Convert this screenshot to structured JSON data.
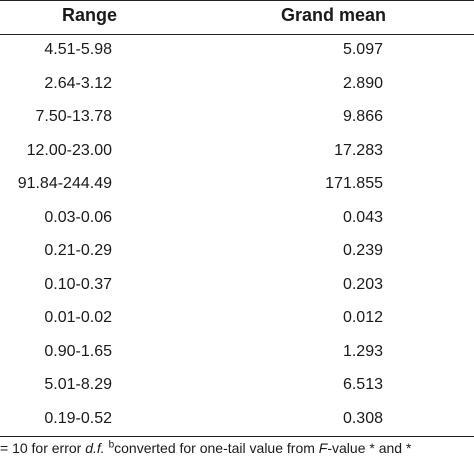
{
  "table": {
    "headers": {
      "range": "Range",
      "grand_mean": "Grand mean"
    },
    "rows": [
      {
        "range": "4.51-5.98",
        "grand_mean": "5.097"
      },
      {
        "range": "2.64-3.12",
        "grand_mean": "2.890"
      },
      {
        "range": "7.50-13.78",
        "grand_mean": "9.866"
      },
      {
        "range": "12.00-23.00",
        "grand_mean": "17.283"
      },
      {
        "range": "91.84-244.49",
        "grand_mean": "171.855"
      },
      {
        "range": "0.03-0.06",
        "grand_mean": "0.043"
      },
      {
        "range": "0.21-0.29",
        "grand_mean": "0.239"
      },
      {
        "range": "0.10-0.37",
        "grand_mean": "0.203"
      },
      {
        "range": "0.01-0.02",
        "grand_mean": "0.012"
      },
      {
        "range": "0.90-1.65",
        "grand_mean": "1.293"
      },
      {
        "range": "5.01-8.29",
        "grand_mean": "6.513"
      },
      {
        "range": "0.19-0.52",
        "grand_mean": "0.308"
      }
    ]
  },
  "footnote": {
    "part1": "= 10 for error ",
    "df": "d.f.",
    "part2": " ",
    "sup_b": "b",
    "part3": "converted for one-tail value from ",
    "f_italic": "F",
    "part4": "-value * and *"
  }
}
